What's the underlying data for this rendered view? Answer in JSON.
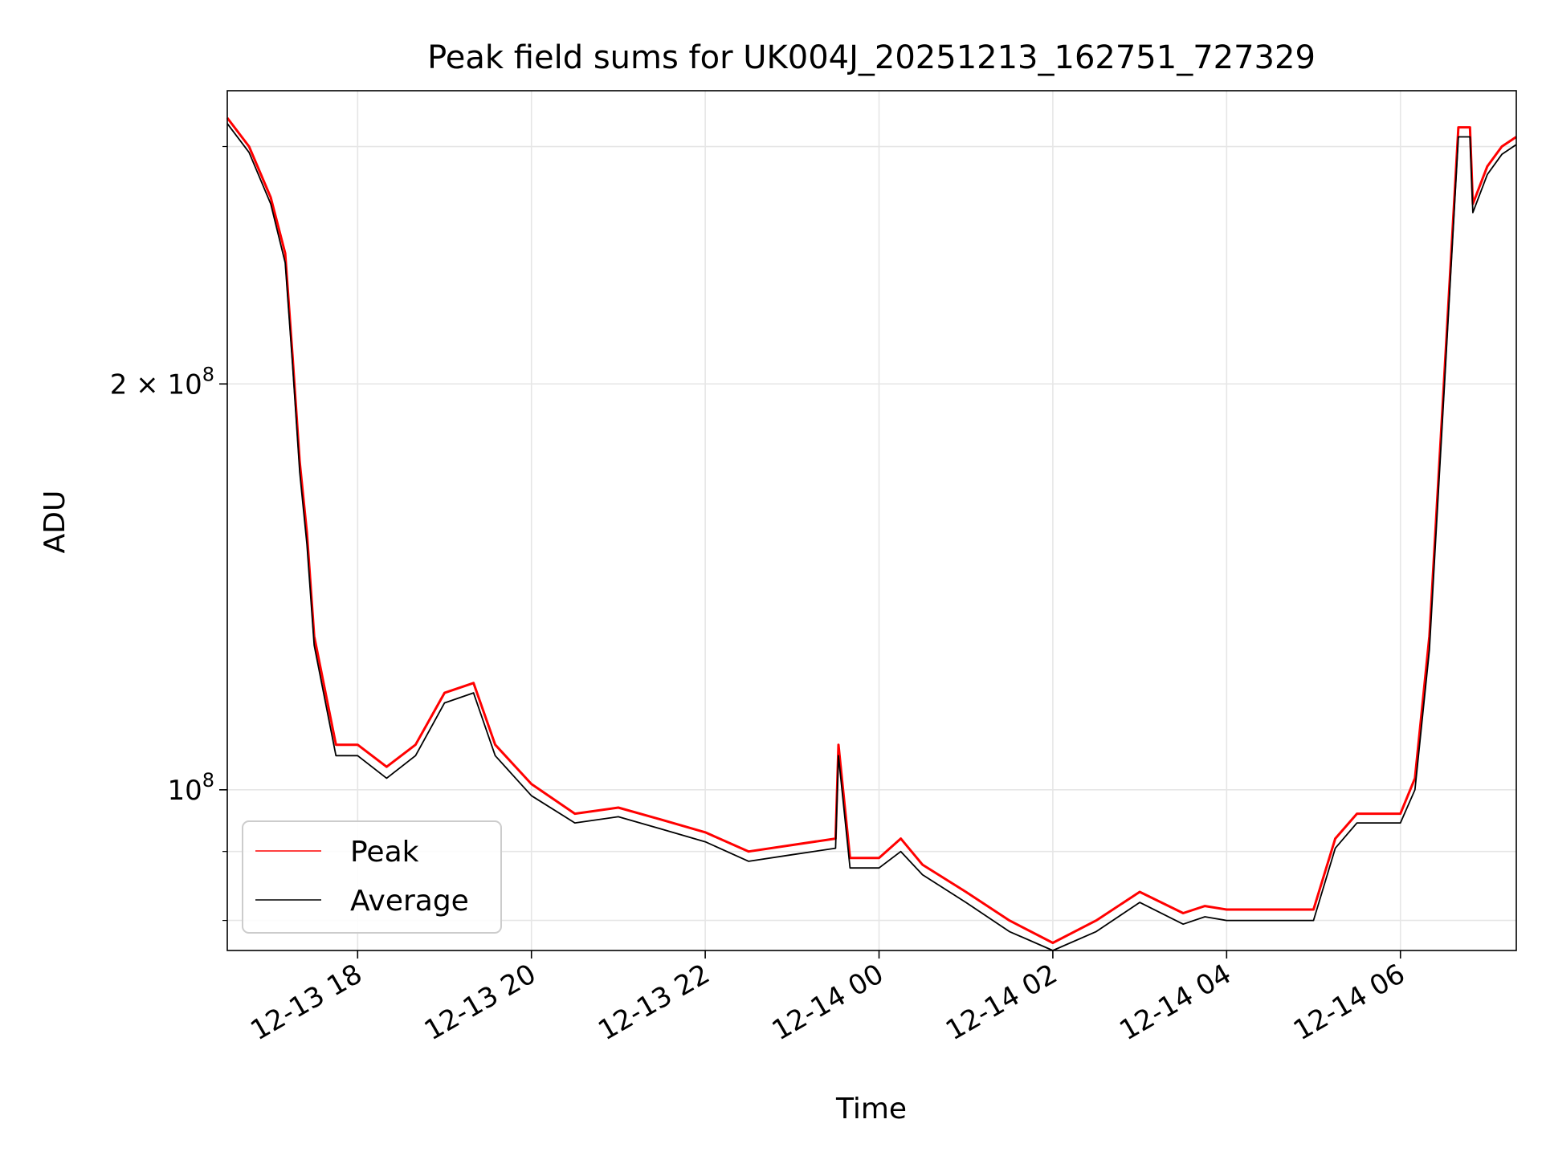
{
  "chart_data": {
    "type": "line",
    "title": "Peak field sums for UK004J_20251213_162751_727329",
    "xlabel": "Time",
    "ylabel": "ADU",
    "y_scale": "log",
    "xlim": [
      "12-13 16:30",
      "12-14 07:20"
    ],
    "ylim": [
      76000000,
      330000000
    ],
    "grid": true,
    "legend_position": "lower-left",
    "x_ticks": [
      "12-13 18",
      "12-13 20",
      "12-13 22",
      "12-14 00",
      "12-14 02",
      "12-14 04",
      "12-14 06"
    ],
    "y_ticks": [
      {
        "value": 200000000,
        "label": "2 × 10",
        "exp": "8"
      },
      {
        "value": 100000000,
        "label": "10",
        "exp": "8"
      }
    ],
    "series": [
      {
        "name": "Peak",
        "color": "#ff0000",
        "x": [
          "12-13 16:30",
          "12-13 16:45",
          "12-13 17:00",
          "12-13 17:10",
          "12-13 17:15",
          "12-13 17:20",
          "12-13 17:25",
          "12-13 17:30",
          "12-13 17:45",
          "12-13 18:00",
          "12-13 18:20",
          "12-13 18:40",
          "12-13 19:00",
          "12-13 19:20",
          "12-13 19:35",
          "12-13 20:00",
          "12-13 20:30",
          "12-13 21:00",
          "12-13 21:30",
          "12-13 22:00",
          "12-13 22:30",
          "12-13 23:00",
          "12-13 23:30",
          "12-13 23:32",
          "12-13 23:40",
          "12-14 00:00",
          "12-14 00:15",
          "12-14 00:30",
          "12-14 01:00",
          "12-14 01:30",
          "12-14 02:00",
          "12-14 02:30",
          "12-14 03:00",
          "12-14 03:30",
          "12-14 03:45",
          "12-14 04:00",
          "12-14 04:30",
          "12-14 05:00",
          "12-14 05:15",
          "12-14 05:30",
          "12-14 05:45",
          "12-14 06:00",
          "12-14 06:10",
          "12-14 06:20",
          "12-14 06:30",
          "12-14 06:40",
          "12-14 06:48",
          "12-14 06:50",
          "12-14 07:00",
          "12-14 07:10",
          "12-14 07:20"
        ],
        "values": [
          315000000,
          300000000,
          275000000,
          250000000,
          210000000,
          175000000,
          155000000,
          130000000,
          108000000,
          108000000,
          104000000,
          108000000,
          118000000,
          120000000,
          108000000,
          101000000,
          96000000,
          97000000,
          95000000,
          93000000,
          90000000,
          91000000,
          92000000,
          108000000,
          89000000,
          89000000,
          92000000,
          88000000,
          84000000,
          80000000,
          77000000,
          80000000,
          84000000,
          81000000,
          82000000,
          81500000,
          81500000,
          81500000,
          92000000,
          96000000,
          96000000,
          96000000,
          102000000,
          130000000,
          200000000,
          310000000,
          310000000,
          272000000,
          290000000,
          300000000,
          305000000
        ]
      },
      {
        "name": "Average",
        "color": "#000000",
        "x": [
          "12-13 16:30",
          "12-13 16:45",
          "12-13 17:00",
          "12-13 17:10",
          "12-13 17:15",
          "12-13 17:20",
          "12-13 17:25",
          "12-13 17:30",
          "12-13 17:45",
          "12-13 18:00",
          "12-13 18:20",
          "12-13 18:40",
          "12-13 19:00",
          "12-13 19:20",
          "12-13 19:35",
          "12-13 20:00",
          "12-13 20:30",
          "12-13 21:00",
          "12-13 21:30",
          "12-13 22:00",
          "12-13 22:30",
          "12-13 23:00",
          "12-13 23:30",
          "12-13 23:32",
          "12-13 23:40",
          "12-14 00:00",
          "12-14 00:15",
          "12-14 00:30",
          "12-14 01:00",
          "12-14 01:30",
          "12-14 02:00",
          "12-14 02:30",
          "12-14 03:00",
          "12-14 03:30",
          "12-14 03:45",
          "12-14 04:00",
          "12-14 04:30",
          "12-14 05:00",
          "12-14 05:15",
          "12-14 05:30",
          "12-14 05:45",
          "12-14 06:00",
          "12-14 06:10",
          "12-14 06:20",
          "12-14 06:30",
          "12-14 06:40",
          "12-14 06:48",
          "12-14 06:50",
          "12-14 07:00",
          "12-14 07:10",
          "12-14 07:20"
        ],
        "values": [
          312000000,
          297000000,
          272000000,
          246000000,
          207000000,
          172000000,
          152000000,
          128000000,
          106000000,
          106000000,
          102000000,
          106000000,
          116000000,
          118000000,
          106000000,
          99000000,
          94500000,
          95500000,
          93500000,
          91500000,
          88500000,
          89500000,
          90500000,
          106000000,
          87500000,
          87500000,
          90000000,
          86500000,
          82500000,
          78500000,
          76000000,
          78500000,
          82500000,
          79500000,
          80500000,
          80000000,
          80000000,
          80000000,
          90500000,
          94500000,
          94500000,
          94500000,
          100000000,
          127000000,
          196000000,
          305000000,
          305000000,
          268000000,
          286000000,
          296000000,
          301000000
        ]
      }
    ]
  }
}
